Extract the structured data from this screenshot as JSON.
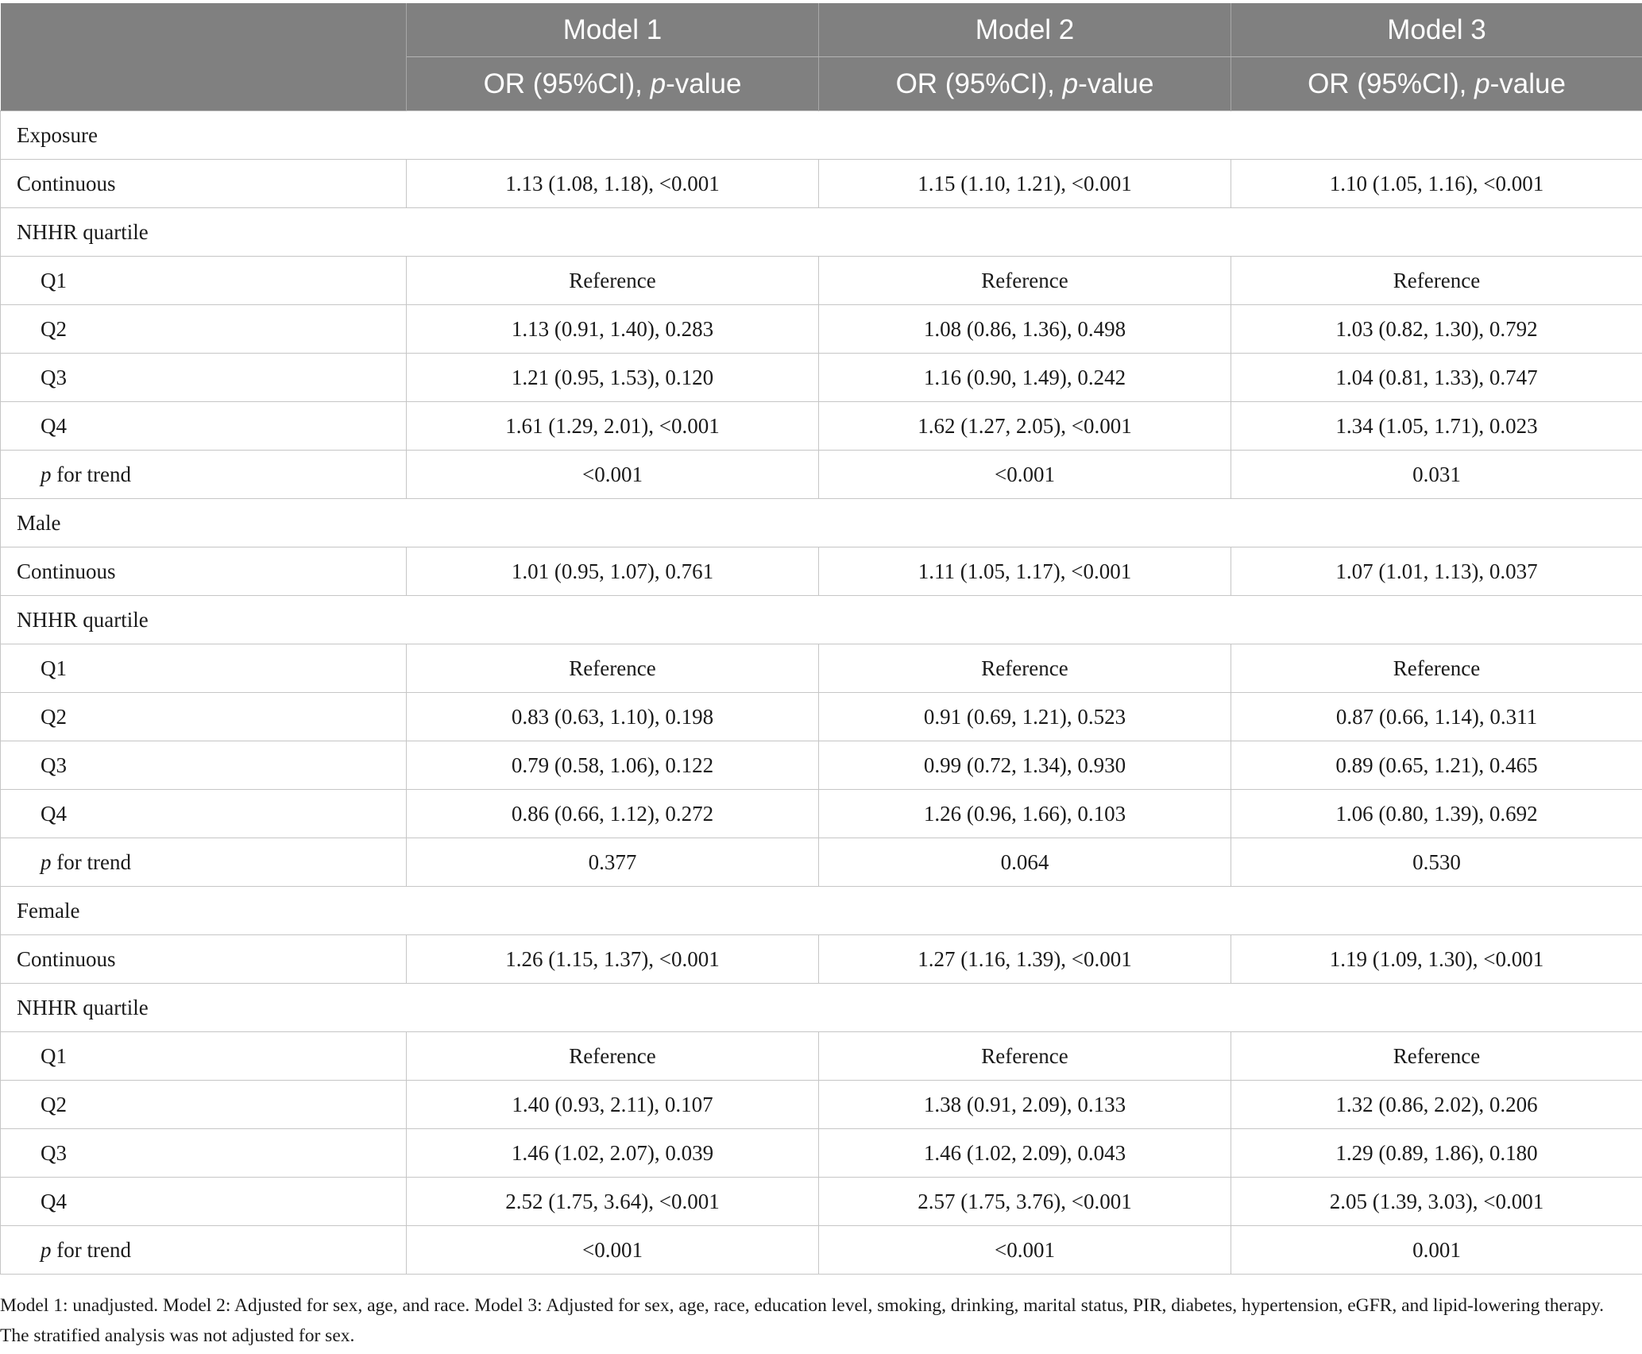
{
  "header": {
    "models": [
      "Model 1",
      "Model 2",
      "Model 3"
    ],
    "subheader_prefix": "OR (95%CI), ",
    "subheader_italic": "p",
    "subheader_suffix": "-value"
  },
  "sections": [
    {
      "title": "Exposure",
      "continuous_label": "Continuous",
      "continuous": [
        "1.13 (1.08, 1.18), <0.001",
        "1.15 (1.10, 1.21), <0.001",
        "1.10 (1.05, 1.16), <0.001"
      ],
      "quartile_label": "NHHR quartile",
      "quartiles": [
        {
          "label": "Q1",
          "values": [
            "Reference",
            "Reference",
            "Reference"
          ]
        },
        {
          "label": "Q2",
          "values": [
            "1.13 (0.91, 1.40), 0.283",
            "1.08 (0.86, 1.36), 0.498",
            "1.03 (0.82, 1.30), 0.792"
          ]
        },
        {
          "label": "Q3",
          "values": [
            "1.21 (0.95, 1.53), 0.120",
            "1.16 (0.90, 1.49), 0.242",
            "1.04 (0.81, 1.33), 0.747"
          ]
        },
        {
          "label": "Q4",
          "values": [
            "1.61 (1.29, 2.01), <0.001",
            "1.62 (1.27, 2.05), <0.001",
            "1.34 (1.05, 1.71), 0.023"
          ]
        }
      ],
      "trend_italic": "p",
      "trend_label": " for trend",
      "trend": [
        "<0.001",
        "<0.001",
        "0.031"
      ]
    },
    {
      "title": "Male",
      "continuous_label": "Continuous",
      "continuous": [
        "1.01 (0.95, 1.07), 0.761",
        "1.11 (1.05, 1.17), <0.001",
        "1.07 (1.01, 1.13), 0.037"
      ],
      "quartile_label": "NHHR quartile",
      "quartiles": [
        {
          "label": "Q1",
          "values": [
            "Reference",
            "Reference",
            "Reference"
          ]
        },
        {
          "label": "Q2",
          "values": [
            "0.83 (0.63, 1.10), 0.198",
            "0.91 (0.69, 1.21), 0.523",
            "0.87 (0.66, 1.14), 0.311"
          ]
        },
        {
          "label": "Q3",
          "values": [
            "0.79 (0.58, 1.06), 0.122",
            "0.99 (0.72, 1.34), 0.930",
            "0.89 (0.65, 1.21), 0.465"
          ]
        },
        {
          "label": "Q4",
          "values": [
            "0.86 (0.66, 1.12), 0.272",
            "1.26 (0.96, 1.66), 0.103",
            "1.06 (0.80, 1.39), 0.692"
          ]
        }
      ],
      "trend_italic": "p",
      "trend_label": " for trend",
      "trend": [
        "0.377",
        "0.064",
        "0.530"
      ]
    },
    {
      "title": "Female",
      "continuous_label": "Continuous",
      "continuous": [
        "1.26 (1.15, 1.37), <0.001",
        "1.27 (1.16, 1.39), <0.001",
        "1.19 (1.09, 1.30), <0.001"
      ],
      "quartile_label": "NHHR quartile",
      "quartiles": [
        {
          "label": "Q1",
          "values": [
            "Reference",
            "Reference",
            "Reference"
          ]
        },
        {
          "label": "Q2",
          "values": [
            "1.40 (0.93, 2.11), 0.107",
            "1.38 (0.91, 2.09), 0.133",
            "1.32 (0.86, 2.02), 0.206"
          ]
        },
        {
          "label": "Q3",
          "values": [
            "1.46 (1.02, 2.07), 0.039",
            "1.46 (1.02, 2.09), 0.043",
            "1.29 (0.89, 1.86), 0.180"
          ]
        },
        {
          "label": "Q4",
          "values": [
            "2.52 (1.75, 3.64), <0.001",
            "2.57 (1.75, 3.76), <0.001",
            "2.05 (1.39, 3.03), <0.001"
          ]
        }
      ],
      "trend_italic": "p",
      "trend_label": " for trend",
      "trend": [
        "<0.001",
        "<0.001",
        "0.001"
      ]
    }
  ],
  "footnote": "Model 1: unadjusted. Model 2: Adjusted for sex, age, and race. Model 3: Adjusted for sex, age, race, education level, smoking, drinking, marital status, PIR, diabetes, hypertension, eGFR, and lipid-lowering therapy. The stratified analysis was not adjusted for sex.",
  "colors": {
    "header_bg": "#808080",
    "header_text": "#ffffff",
    "grid": "#c6c6c6"
  }
}
